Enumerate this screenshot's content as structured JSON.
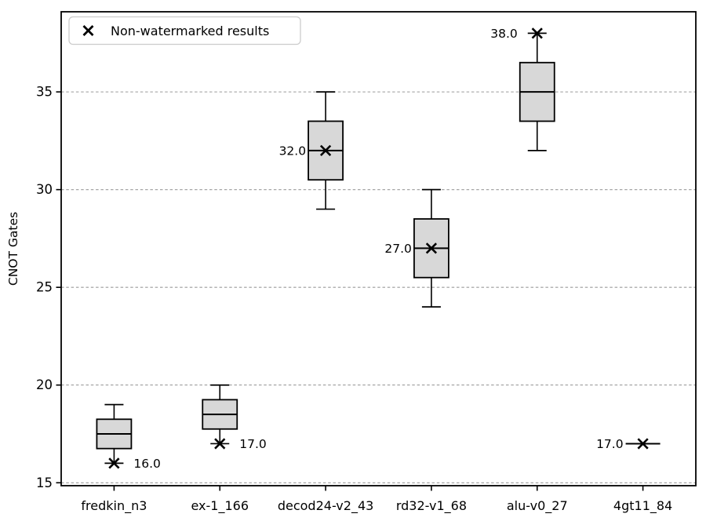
{
  "chart_data": {
    "type": "boxplot",
    "title": "",
    "xlabel": "",
    "ylabel": "CNOT Gates",
    "ylim": [
      14.85,
      39.1
    ],
    "yticks": [
      15,
      20,
      25,
      30,
      35
    ],
    "grid": "horizontal-dashed",
    "legend": {
      "label": "Non-watermarked results",
      "marker": "x-marker",
      "position": "upper left"
    },
    "categories": [
      "fredkin_n3",
      "ex-1_166",
      "decod24-v2_43",
      "rd32-v1_68",
      "alu-v0_27",
      "4gt11_84"
    ],
    "boxes": [
      {
        "category": "fredkin_n3",
        "whislo": 16,
        "q1": 16.75,
        "med": 17.5,
        "q3": 18.25,
        "whishi": 19,
        "marker": 16.0,
        "annotation": "16.0",
        "annotation_side": "right"
      },
      {
        "category": "ex-1_166",
        "whislo": 17,
        "q1": 17.75,
        "med": 18.5,
        "q3": 19.25,
        "whishi": 20,
        "marker": 17.0,
        "annotation": "17.0",
        "annotation_side": "right"
      },
      {
        "category": "decod24-v2_43",
        "whislo": 29,
        "q1": 30.5,
        "med": 32,
        "q3": 33.5,
        "whishi": 35,
        "marker": 32.0,
        "annotation": "32.0",
        "annotation_side": "left"
      },
      {
        "category": "rd32-v1_68",
        "whislo": 24,
        "q1": 25.5,
        "med": 27,
        "q3": 28.5,
        "whishi": 30,
        "marker": 27.0,
        "annotation": "27.0",
        "annotation_side": "left"
      },
      {
        "category": "alu-v0_27",
        "whislo": 32,
        "q1": 33.5,
        "med": 35,
        "q3": 36.5,
        "whishi": 38,
        "marker": 38.0,
        "annotation": "38.0",
        "annotation_side": "left"
      },
      {
        "category": "4gt11_84",
        "whislo": 17,
        "q1": 17,
        "med": 17,
        "q3": 17,
        "whishi": 17,
        "marker": 17.0,
        "annotation": "17.0",
        "annotation_side": "left"
      }
    ],
    "colors": {
      "box_fill": "#d8d8d8",
      "line": "#000000",
      "grid": "#9b9b9b",
      "legend_border": "#cccccc",
      "background": "#ffffff"
    }
  }
}
